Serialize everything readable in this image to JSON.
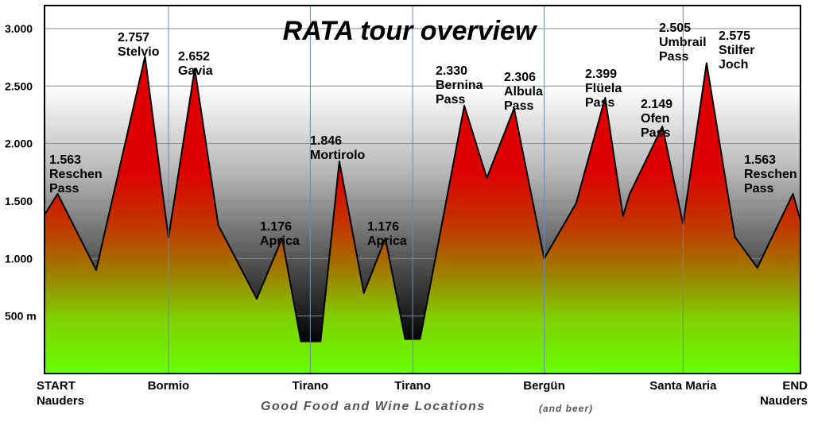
{
  "chart_data": {
    "type": "area",
    "title": "RATA tour overview",
    "ylim": [
      0,
      3200
    ],
    "yticks": [
      {
        "value": 500,
        "label": "500 m"
      },
      {
        "value": 1000,
        "label": "1.000"
      },
      {
        "value": 1500,
        "label": "1.500"
      },
      {
        "value": 2000,
        "label": "2.000"
      },
      {
        "value": 2500,
        "label": "2.500"
      },
      {
        "value": 3000,
        "label": "3.000"
      }
    ],
    "profile": [
      {
        "x": 0,
        "y": 1380
      },
      {
        "x": 1.4,
        "y": 1563
      },
      {
        "x": 5.5,
        "y": 900
      },
      {
        "x": 10.7,
        "y": 2757
      },
      {
        "x": 13.2,
        "y": 1180
      },
      {
        "x": 16.0,
        "y": 2652
      },
      {
        "x": 18.5,
        "y": 1290
      },
      {
        "x": 22.6,
        "y": 650
      },
      {
        "x": 25.3,
        "y": 1176
      },
      {
        "x": 27.3,
        "y": 280
      },
      {
        "x": 29.4,
        "y": 280
      },
      {
        "x": 31.4,
        "y": 1846
      },
      {
        "x": 34.0,
        "y": 700
      },
      {
        "x": 36.3,
        "y": 1176
      },
      {
        "x": 38.4,
        "y": 300
      },
      {
        "x": 40.0,
        "y": 300
      },
      {
        "x": 44.7,
        "y": 2330
      },
      {
        "x": 47.1,
        "y": 1700
      },
      {
        "x": 50.0,
        "y": 2306
      },
      {
        "x": 53.2,
        "y": 1000
      },
      {
        "x": 56.6,
        "y": 1480
      },
      {
        "x": 59.7,
        "y": 2399
      },
      {
        "x": 61.6,
        "y": 1370
      },
      {
        "x": 62.3,
        "y": 1560
      },
      {
        "x": 65.8,
        "y": 2149
      },
      {
        "x": 68.0,
        "y": 1300
      },
      {
        "x": 70.5,
        "y": 2700
      },
      {
        "x": 73.5,
        "y": 1190
      },
      {
        "x": 75.9,
        "y": 920
      },
      {
        "x": 79.7,
        "y": 1563
      },
      {
        "x": 80.5,
        "y": 1330
      }
    ],
    "xlim": [
      0,
      80.5
    ],
    "categories": [
      {
        "label": "START\nNauders",
        "x": 0
      },
      {
        "label": "Bormio",
        "x": 13.2
      },
      {
        "label": "Tirano",
        "x": 28.3
      },
      {
        "label": "Tirano",
        "x": 39.2
      },
      {
        "label": "Bergün",
        "x": 53.2
      },
      {
        "label": "Santa Maria",
        "x": 68.0
      },
      {
        "label": "END\nNauders",
        "x": 80.5
      }
    ],
    "peaks": [
      {
        "value": "1.563",
        "name": "Reschen\nPass"
      },
      {
        "value": "2.757",
        "name": "Stelvio"
      },
      {
        "value": "2.652",
        "name": "Gavia"
      },
      {
        "value": "1.176",
        "name": "Aprica"
      },
      {
        "value": "1.846",
        "name": "Mortirolo"
      },
      {
        "value": "1.176",
        "name": "Aprica"
      },
      {
        "value": "2.330",
        "name": "Bernina\nPass"
      },
      {
        "value": "2.306",
        "name": "Albula\nPass"
      },
      {
        "value": "2.399",
        "name": "Flüela\nPass"
      },
      {
        "value": "2.149",
        "name": "Ofen\nPass"
      },
      {
        "value": "2.505",
        "name": "Umbrail\nPass"
      },
      {
        "value": "2.575",
        "name": "Stilfer\nJoch"
      },
      {
        "value": "1.563",
        "name": "Reschen\nPass"
      }
    ],
    "footer": "Good Food and Wine Locations",
    "footer_note": "(and beer)",
    "colors": {
      "background_top": "#ffffff",
      "background_mid": "#b8b8b8",
      "background_bottom": "#000000",
      "fill_high": "#e00000",
      "fill_mid": "#b86a00",
      "fill_low": "#66ff00"
    }
  }
}
